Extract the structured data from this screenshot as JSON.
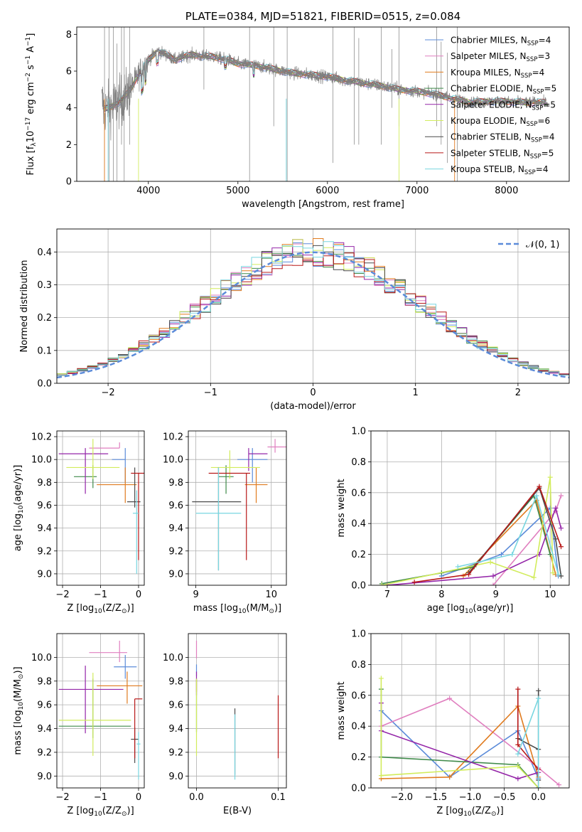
{
  "colors": {
    "chabrier_miles": "#5b8bd9",
    "salpeter_miles": "#e07fbf",
    "kroupa_miles": "#e07b1f",
    "chabrier_elodie": "#3f8a4a",
    "salpeter_elodie": "#9425a8",
    "kroupa_elodie": "#d2ec5c",
    "chabrier_stelib": "#4a4a4a",
    "salpeter_stelib": "#b81818",
    "kroupa_stelib": "#78d6e0",
    "data": "#808080",
    "normal": "#5b8bd9"
  },
  "legend": {
    "chabrier_miles": {
      "pre": "Chabrier MILES, N",
      "sub": "SSP",
      "post": "=4"
    },
    "salpeter_miles": {
      "pre": "Salpeter MILES, N",
      "sub": "SSP",
      "post": "=3"
    },
    "kroupa_miles": {
      "pre": "Kroupa MILES, N",
      "sub": "SSP",
      "post": "=4"
    },
    "chabrier_elodie": {
      "pre": "Chabrier ELODIE, N",
      "sub": "SSP",
      "post": "=5"
    },
    "salpeter_elodie": {
      "pre": "Salpeter ELODIE, N",
      "sub": "SSP",
      "post": "=5"
    },
    "kroupa_elodie": {
      "pre": "Kroupa ELODIE, N",
      "sub": "SSP",
      "post": "=6"
    },
    "chabrier_stelib": {
      "pre": "Chabrier STELIB, N",
      "sub": "SSP",
      "post": "=4"
    },
    "salpeter_stelib": {
      "pre": "Salpeter STELIB, N",
      "sub": "SSP",
      "post": "=5"
    },
    "kroupa_stelib": {
      "pre": "Kroupa STELIB, N",
      "sub": "SSP",
      "post": "=4"
    }
  },
  "chart_data": [
    {
      "type": "line",
      "panel": "spectrum",
      "title": "PLATE=0384, MJD=51821, FIBERID=0515, z=0.084",
      "xlabel": "wavelength [Angstrom, rest frame]",
      "ylabel": {
        "pre": "Flux [f",
        "sub1": "λ",
        "mid": "10",
        "sup1": "−17",
        "post": " erg cm",
        "sup2": "−2",
        "post2": " s",
        "sup3": "−1",
        "post3": " A",
        "sup4": "−1",
        "end": "]"
      },
      "xlim": [
        3200,
        8700
      ],
      "ylim": [
        0,
        8.4
      ],
      "xticks": [
        4000,
        5000,
        6000,
        7000,
        8000
      ],
      "yticks": [
        0,
        2,
        4,
        6,
        8
      ],
      "continuum": {
        "wavelength": [
          3500,
          3600,
          3700,
          3800,
          3900,
          4000,
          4100,
          4200,
          4300,
          4400,
          4500,
          4600,
          4700,
          4800,
          4900,
          5000,
          5200,
          5400,
          5600,
          5800,
          6000,
          6200,
          6400,
          6600,
          6800,
          7000,
          7200,
          7400,
          7600,
          7800,
          8000,
          8200,
          8400
        ],
        "flux": [
          3.9,
          4.1,
          4.4,
          5.0,
          5.9,
          6.6,
          7.1,
          6.9,
          6.6,
          6.8,
          6.9,
          6.8,
          6.8,
          6.7,
          6.6,
          6.4,
          6.3,
          6.1,
          5.9,
          5.8,
          5.7,
          5.5,
          5.35,
          5.2,
          5.0,
          4.9,
          4.75,
          4.5,
          4.3,
          4.35,
          4.35,
          4.3,
          4.3
        ]
      }
    },
    {
      "type": "line",
      "panel": "residual_histogram",
      "xlabel": "(data-model)/error",
      "ylabel": "Normed distribution",
      "xlim": [
        -2.5,
        2.5
      ],
      "ylim": [
        0,
        0.47
      ],
      "xticks": [
        -2,
        -1,
        0,
        1,
        2
      ],
      "yticks": [
        0.0,
        0.1,
        0.2,
        0.3,
        0.4
      ],
      "legend": {
        "label": "𝒩(0, 1)"
      }
    },
    {
      "type": "scatter",
      "panel": "age_vs_Z",
      "xlabel": {
        "pre": "Z [log",
        "sub": "10",
        "post": "(Z/Z",
        "sub2": "⊙",
        "end": ")]"
      },
      "ylabel": {
        "pre": "age  [log",
        "sub": "10",
        "post": "(age/yr)]"
      },
      "xlim": [
        -2.15,
        0.15
      ],
      "ylim": [
        8.9,
        10.25
      ],
      "xticks": [
        -2,
        -1,
        0
      ],
      "yticks": [
        9.0,
        9.2,
        9.4,
        9.6,
        9.8,
        10.0,
        10.2
      ],
      "points": [
        {
          "series": "chabrier_miles",
          "x": -0.35,
          "y": 10.0,
          "xerr": [
            0.35,
            0.0
          ],
          "yerr": [
            0.2,
            0.1
          ]
        },
        {
          "series": "salpeter_miles",
          "x": -0.5,
          "y": 10.1,
          "xerr": [
            0.8,
            0.0
          ],
          "yerr": [
            0.0,
            0.05
          ]
        },
        {
          "series": "kroupa_miles",
          "x": -0.35,
          "y": 9.78,
          "xerr": [
            0.75,
            0.3
          ],
          "yerr": [
            0.16,
            0.15
          ]
        },
        {
          "series": "chabrier_elodie",
          "x": -1.2,
          "y": 9.85,
          "xerr": [
            0.5,
            0.1
          ],
          "yerr": [
            0.1,
            0.1
          ]
        },
        {
          "series": "salpeter_elodie",
          "x": -1.4,
          "y": 10.05,
          "xerr": [
            0.7,
            0.6
          ],
          "yerr": [
            0.35,
            0.05
          ]
        },
        {
          "series": "kroupa_elodie",
          "x": -1.2,
          "y": 9.93,
          "xerr": [
            0.7,
            0.7
          ],
          "yerr": [
            0.1,
            0.25
          ]
        },
        {
          "series": "chabrier_stelib",
          "x": -0.1,
          "y": 9.63,
          "xerr": [
            0.2,
            0.15
          ],
          "yerr": [
            0.05,
            0.3
          ]
        },
        {
          "series": "salpeter_stelib",
          "x": 0.0,
          "y": 9.88,
          "xerr": [
            0.2,
            0.15
          ],
          "yerr": [
            0.76,
            0.0
          ]
        },
        {
          "series": "kroupa_stelib",
          "x": -0.05,
          "y": 9.53,
          "xerr": [
            0.1,
            0.05
          ],
          "yerr": [
            0.53,
            0.2
          ]
        }
      ]
    },
    {
      "type": "scatter",
      "panel": "age_vs_mass",
      "xlabel": {
        "pre": "mass [log",
        "sub": "10",
        "post": "(M/M",
        "sub2": "⊙",
        "end": ")]"
      },
      "xlim": [
        8.9,
        10.2
      ],
      "ylim": [
        8.9,
        10.25
      ],
      "xticks": [
        9,
        10
      ],
      "yticks": [
        9.0,
        9.2,
        9.4,
        9.6,
        9.8,
        10.0,
        10.2
      ],
      "points": [
        {
          "series": "chabrier_miles",
          "x": 9.75,
          "y": 10.0,
          "xerr": [
            0.2,
            0.2
          ],
          "yerr": [
            0.2,
            0.1
          ]
        },
        {
          "series": "salpeter_miles",
          "x": 10.05,
          "y": 10.11,
          "xerr": [
            0.1,
            0.15
          ],
          "yerr": [
            0.05,
            0.07
          ]
        },
        {
          "series": "kroupa_miles",
          "x": 9.8,
          "y": 9.78,
          "xerr": [
            0.15,
            0.15
          ],
          "yerr": [
            0.16,
            0.15
          ]
        },
        {
          "series": "chabrier_elodie",
          "x": 9.4,
          "y": 9.85,
          "xerr": [
            0.1,
            0.1
          ],
          "yerr": [
            0.15,
            0.1
          ]
        },
        {
          "series": "salpeter_elodie",
          "x": 9.7,
          "y": 10.05,
          "xerr": [
            0.0,
            0.25
          ],
          "yerr": [
            0.15,
            0.05
          ]
        },
        {
          "series": "kroupa_elodie",
          "x": 9.45,
          "y": 9.93,
          "xerr": [
            0.25,
            0.4
          ],
          "yerr": [
            0.1,
            0.15
          ]
        },
        {
          "series": "chabrier_stelib",
          "x": 9.3,
          "y": 9.63,
          "xerr": [
            0.35,
            0.3
          ],
          "yerr": [
            0.6,
            0.3
          ]
        },
        {
          "series": "salpeter_stelib",
          "x": 9.67,
          "y": 9.88,
          "xerr": [
            0.5,
            0.05
          ],
          "yerr": [
            0.76,
            0.0
          ]
        },
        {
          "series": "kroupa_stelib",
          "x": 9.3,
          "y": 9.53,
          "xerr": [
            0.3,
            0.3
          ],
          "yerr": [
            0.5,
            0.4
          ]
        }
      ]
    },
    {
      "type": "line",
      "panel": "weight_vs_age",
      "xlabel": {
        "pre": "age  [log",
        "sub": "10",
        "post": "(age/yr)]"
      },
      "ylabel": "mass weight",
      "xlim": [
        6.7,
        10.35
      ],
      "ylim": [
        0,
        1.0
      ],
      "xticks": [
        7,
        8,
        9,
        10
      ],
      "yticks": [
        0.0,
        0.2,
        0.4,
        0.6,
        0.8,
        1.0
      ],
      "series": [
        {
          "key": "chabrier_miles",
          "x": [
            8.0,
            9.1,
            10.0,
            10.15
          ],
          "y": [
            0.06,
            0.2,
            0.5,
            0.06
          ]
        },
        {
          "key": "salpeter_miles",
          "x": [
            8.95,
            10.1,
            10.2
          ],
          "y": [
            0.0,
            0.48,
            0.58
          ]
        },
        {
          "key": "kroupa_miles",
          "x": [
            8.4,
            9.75,
            10.1
          ],
          "y": [
            0.06,
            0.55,
            0.07
          ]
        },
        {
          "key": "chabrier_elodie",
          "x": [
            6.9,
            8.0,
            8.6,
            9.7,
            10.0
          ],
          "y": [
            0.01,
            0.08,
            0.12,
            0.58,
            0.2
          ]
        },
        {
          "key": "salpeter_elodie",
          "x": [
            7.0,
            8.95,
            9.8,
            10.1,
            10.2
          ],
          "y": [
            0.0,
            0.06,
            0.2,
            0.5,
            0.37
          ]
        },
        {
          "key": "kroupa_elodie",
          "x": [
            6.9,
            8.9,
            9.7,
            10.0,
            10.05
          ],
          "y": [
            0.0,
            0.15,
            0.05,
            0.7,
            0.08
          ]
        },
        {
          "key": "chabrier_stelib",
          "x": [
            8.5,
            9.8,
            10.1,
            10.2
          ],
          "y": [
            0.08,
            0.63,
            0.3,
            0.06
          ]
        },
        {
          "key": "salpeter_stelib",
          "x": [
            7.5,
            8.5,
            9.8,
            10.2
          ],
          "y": [
            0.02,
            0.07,
            0.64,
            0.25
          ]
        },
        {
          "key": "kroupa_stelib",
          "x": [
            8.3,
            9.3,
            9.75,
            10.15
          ],
          "y": [
            0.12,
            0.2,
            0.58,
            0.07
          ]
        }
      ]
    },
    {
      "type": "scatter",
      "panel": "mass_vs_Z",
      "xlabel": {
        "pre": "Z [log",
        "sub": "10",
        "post": "(Z/Z",
        "sub2": "⊙",
        "end": ")]"
      },
      "ylabel": {
        "pre": "mass [log",
        "sub": "10",
        "post": "(M/M",
        "sub2": "⊙",
        "end": ")]"
      },
      "xlim": [
        -2.15,
        0.15
      ],
      "ylim": [
        8.9,
        10.2
      ],
      "xticks": [
        -2,
        -1,
        0
      ],
      "yticks": [
        9.0,
        9.2,
        9.4,
        9.6,
        9.8,
        10.0
      ],
      "points": [
        {
          "series": "chabrier_miles",
          "x": -0.35,
          "y": 9.92,
          "xerr": [
            0.3,
            0.3
          ],
          "yerr": [
            0.1,
            0.1
          ]
        },
        {
          "series": "salpeter_miles",
          "x": -0.5,
          "y": 10.04,
          "xerr": [
            0.8,
            0.2
          ],
          "yerr": [
            0.08,
            0.1
          ]
        },
        {
          "series": "kroupa_miles",
          "x": -0.3,
          "y": 9.76,
          "xerr": [
            0.8,
            0.4
          ],
          "yerr": [
            0.15,
            0.12
          ]
        },
        {
          "series": "chabrier_elodie",
          "x": -1.2,
          "y": 9.42,
          "xerr": [
            0.9,
            1.0
          ],
          "yerr": [
            0.1,
            0.4
          ]
        },
        {
          "series": "salpeter_elodie",
          "x": -1.4,
          "y": 9.73,
          "xerr": [
            0.7,
            1.0
          ],
          "yerr": [
            0.37,
            0.2
          ]
        },
        {
          "series": "kroupa_elodie",
          "x": -1.2,
          "y": 9.47,
          "xerr": [
            0.9,
            1.0
          ],
          "yerr": [
            0.3,
            0.4
          ]
        },
        {
          "series": "chabrier_stelib",
          "x": -0.1,
          "y": 9.31,
          "xerr": [
            0.1,
            0.1
          ],
          "yerr": [
            0.2,
            0.1
          ]
        },
        {
          "series": "salpeter_stelib",
          "x": -0.1,
          "y": 9.65,
          "xerr": [
            0.0,
            0.2
          ],
          "yerr": [
            0.5,
            0.0
          ]
        },
        {
          "series": "kroupa_stelib",
          "x": 0.0,
          "y": 9.27,
          "xerr": [
            0.05,
            0.05
          ],
          "yerr": [
            0.3,
            0.1
          ]
        }
      ]
    },
    {
      "type": "scatter",
      "panel": "mass_vs_ebv",
      "xlabel": "E(B-V)",
      "xlim": [
        -0.01,
        0.11
      ],
      "ylim": [
        8.9,
        10.2
      ],
      "xticks": [
        0.0,
        0.1
      ],
      "yticks": [
        9.0,
        9.2,
        9.4,
        9.6,
        9.8,
        10.0
      ],
      "points": [
        {
          "series": "chabrier_miles",
          "x": 0.0,
          "y": 9.92,
          "xerr": [
            0,
            0
          ],
          "yerr": [
            0.08,
            0.02
          ]
        },
        {
          "series": "salpeter_miles",
          "x": 0.0,
          "y": 10.04,
          "xerr": [
            0,
            0
          ],
          "yerr": [
            0.05,
            0.1
          ]
        },
        {
          "series": "kroupa_miles",
          "x": 0.0,
          "y": 9.76,
          "xerr": [
            0,
            0
          ],
          "yerr": [
            0.05,
            0.05
          ]
        },
        {
          "series": "chabrier_elodie",
          "x": 0.0,
          "y": 9.42,
          "xerr": [
            0,
            0
          ],
          "yerr": [
            0.05,
            0.4
          ]
        },
        {
          "series": "salpeter_elodie",
          "x": 0.0,
          "y": 9.73,
          "xerr": [
            0,
            0
          ],
          "yerr": [
            0.05,
            0.15
          ]
        },
        {
          "series": "kroupa_elodie",
          "x": 0.0,
          "y": 9.47,
          "xerr": [
            0,
            0
          ],
          "yerr": [
            0.3,
            0.35
          ]
        },
        {
          "series": "chabrier_stelib",
          "x": 0.047,
          "y": 9.31,
          "xerr": [
            0,
            0
          ],
          "yerr": [
            0.3,
            0.26
          ]
        },
        {
          "series": "salpeter_stelib",
          "x": 0.1,
          "y": 9.65,
          "xerr": [
            0,
            0
          ],
          "yerr": [
            0.5,
            0.03
          ]
        },
        {
          "series": "kroupa_stelib",
          "x": 0.047,
          "y": 9.27,
          "xerr": [
            0,
            0
          ],
          "yerr": [
            0.3,
            0.25
          ]
        }
      ]
    },
    {
      "type": "line",
      "panel": "weight_vs_Z",
      "xlabel": {
        "pre": "Z [log",
        "sub": "10",
        "post": "(Z/Z",
        "sub2": "⊙",
        "end": ")]"
      },
      "ylabel": "mass weight",
      "xlim": [
        -2.45,
        0.45
      ],
      "ylim": [
        0,
        1.0
      ],
      "xticks": [
        -2.0,
        -1.5,
        -1.0,
        -0.5,
        0.0
      ],
      "yticks": [
        0.0,
        0.2,
        0.4,
        0.6,
        0.8,
        1.0
      ],
      "series": [
        {
          "key": "chabrier_miles",
          "x": [
            -2.3,
            -1.3,
            -0.3,
            0.0
          ],
          "y": [
            0.5,
            0.07,
            0.37,
            0.06
          ]
        },
        {
          "key": "salpeter_miles",
          "x": [
            -2.3,
            -1.3,
            0.0,
            0.3
          ],
          "y": [
            0.4,
            0.58,
            0.13,
            0.02
          ]
        },
        {
          "key": "kroupa_miles",
          "x": [
            -2.3,
            -1.3,
            -0.3,
            0.0
          ],
          "y": [
            0.06,
            0.07,
            0.53,
            0.07
          ]
        },
        {
          "key": "chabrier_elodie",
          "x": [
            -2.3,
            -2.3,
            -0.3,
            0.0
          ],
          "y": [
            0.64,
            0.2,
            0.15,
            0.0
          ]
        },
        {
          "key": "salpeter_elodie",
          "x": [
            -2.3,
            -2.3,
            -0.3,
            0.0
          ],
          "y": [
            0.55,
            0.37,
            0.06,
            0.1
          ]
        },
        {
          "key": "kroupa_elodie",
          "x": [
            -2.3,
            -2.3,
            -0.3,
            0.0
          ],
          "y": [
            0.71,
            0.08,
            0.14,
            0.0
          ]
        },
        {
          "key": "chabrier_stelib",
          "x": [
            -0.3,
            0.0,
            0.0,
            0.0
          ],
          "y": [
            0.32,
            0.25,
            0.63,
            0.05
          ]
        },
        {
          "key": "salpeter_stelib",
          "x": [
            -0.3,
            -0.3,
            0.0,
            0.0
          ],
          "y": [
            0.64,
            0.28,
            0.12,
            0.0
          ]
        },
        {
          "key": "kroupa_stelib",
          "x": [
            -0.3,
            0.0,
            0.0
          ],
          "y": [
            0.22,
            0.58,
            0.0
          ]
        }
      ]
    }
  ]
}
